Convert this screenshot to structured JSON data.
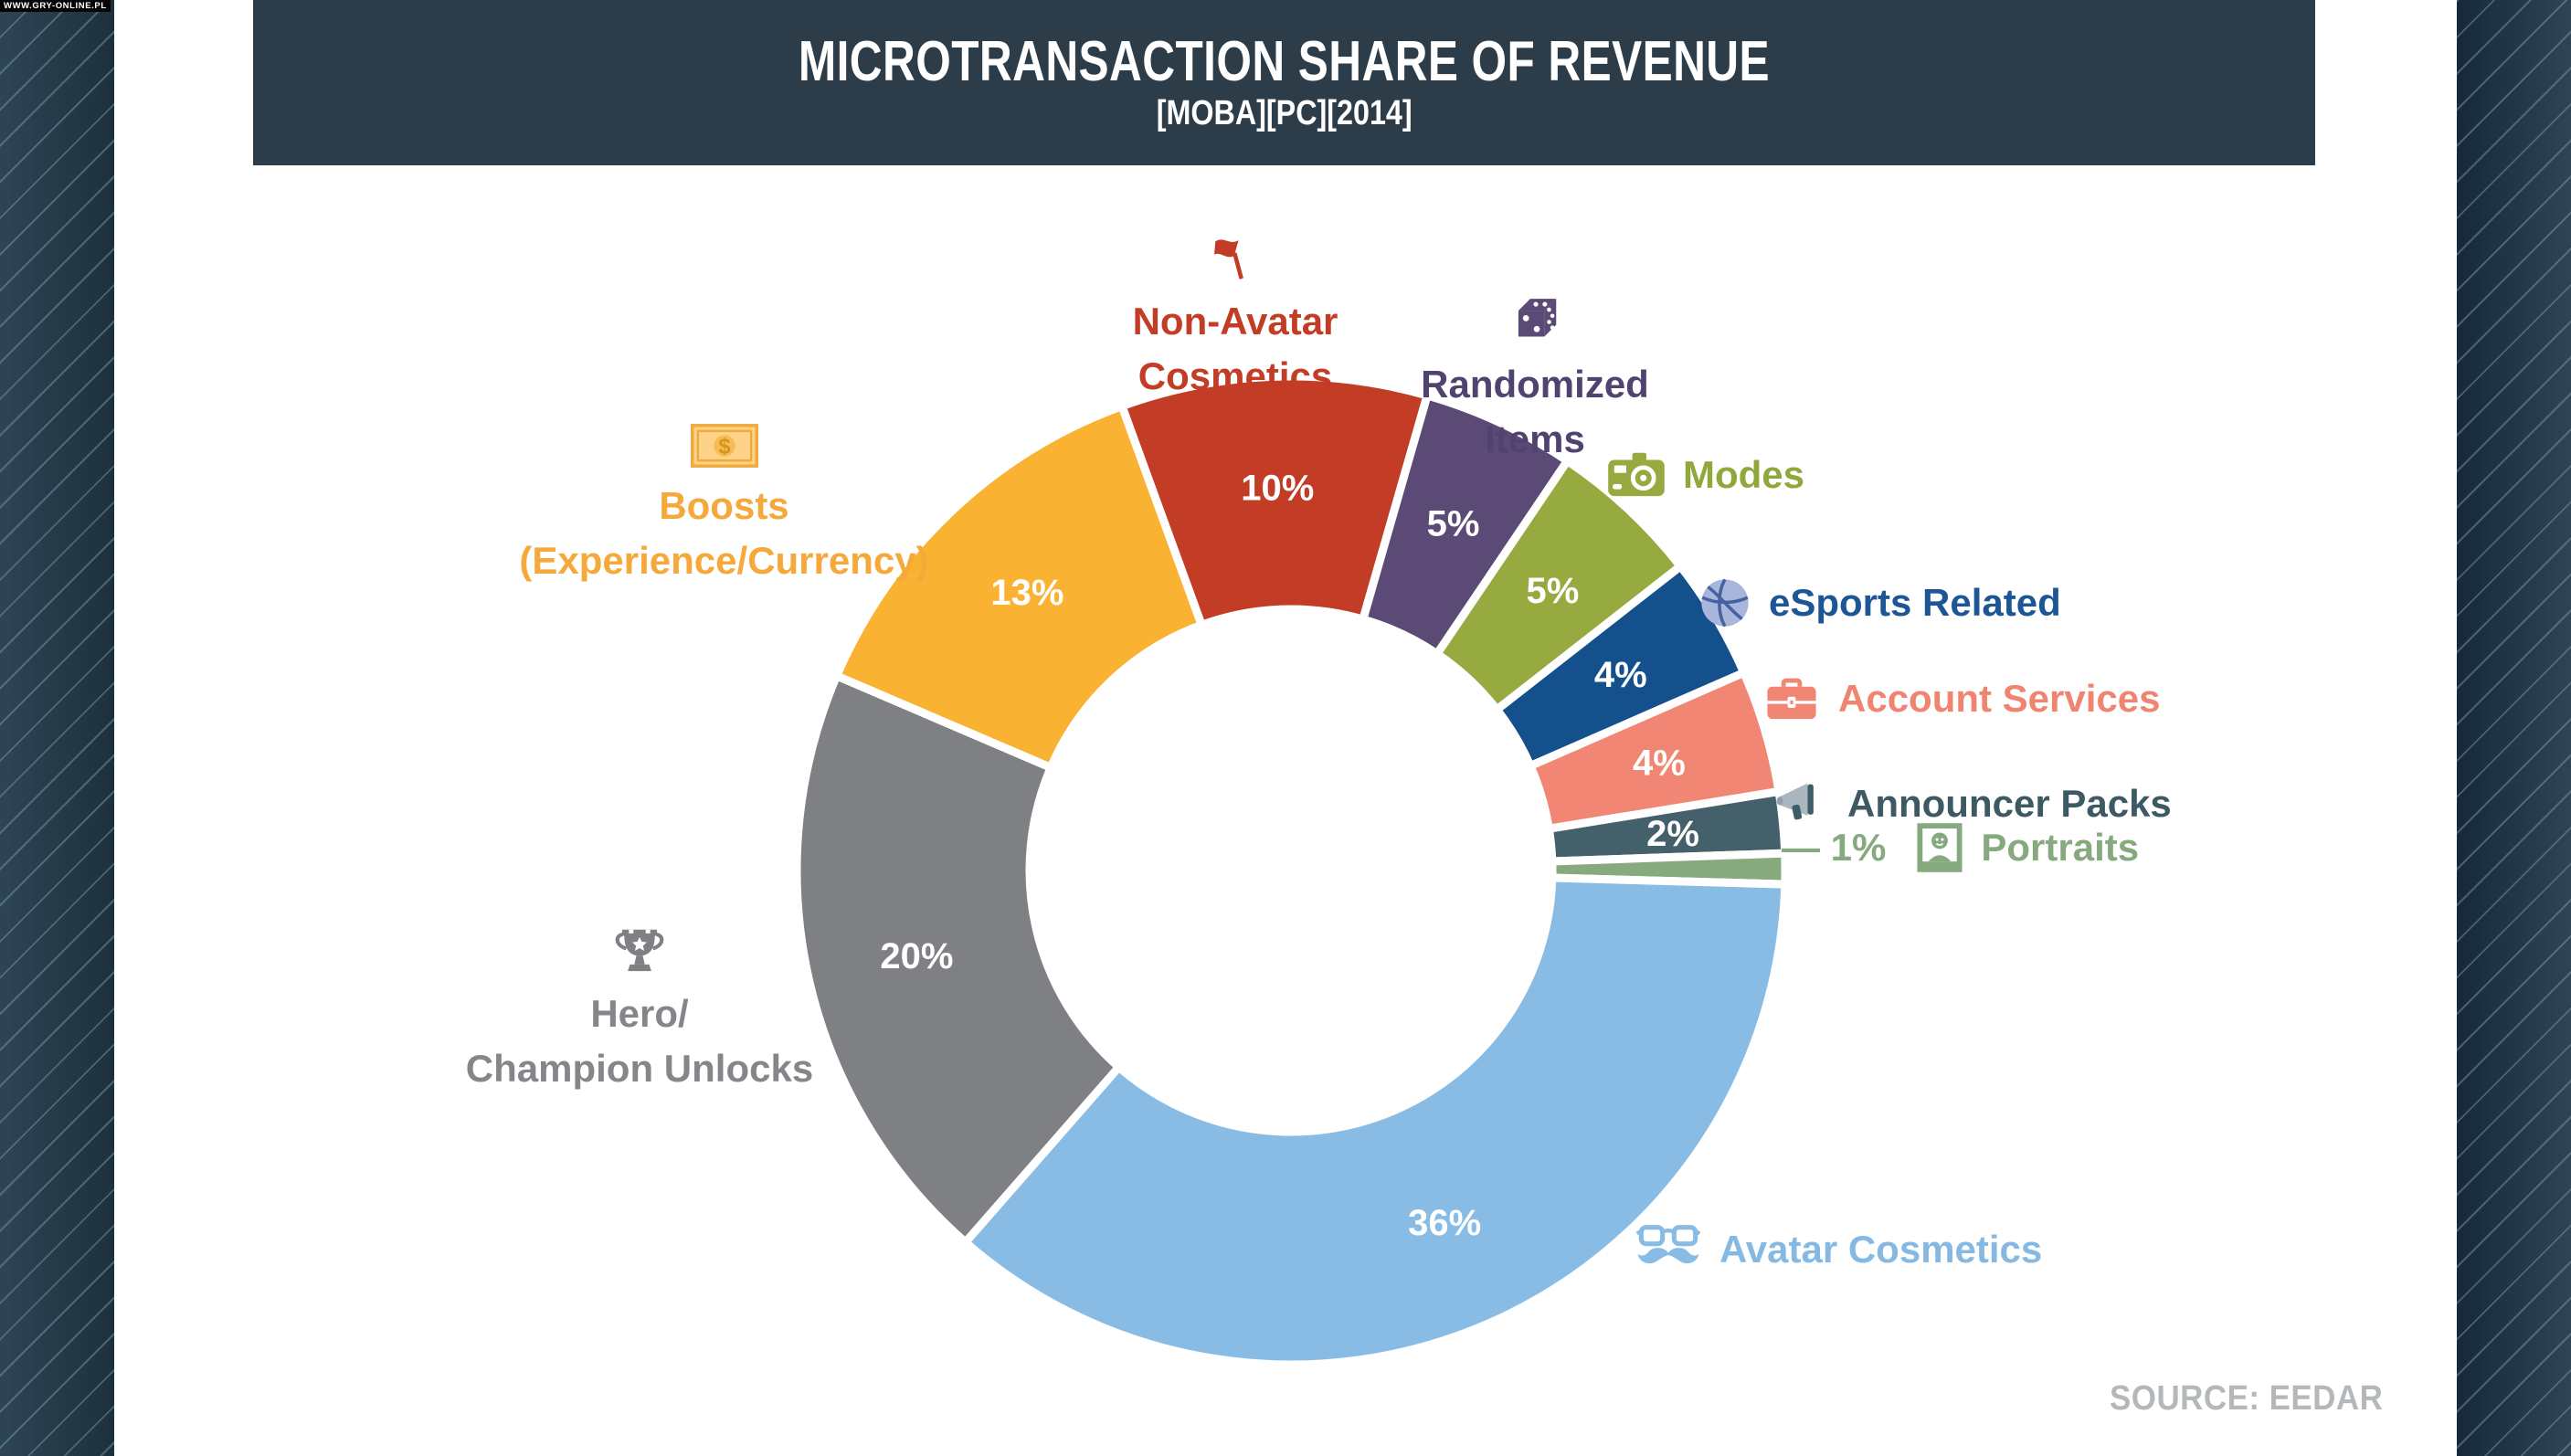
{
  "watermark": "WWW.GRY-ONLINE.PL",
  "header": {
    "title": "MICROTRANSACTION SHARE OF REVENUE",
    "subtitle": "[MOBA][PC][2014]"
  },
  "source": "SOURCE: EEDAR",
  "colors": {
    "header_bar": "#2c3d49",
    "panel_dark": "#1d303e",
    "panel_light": "#2e4553",
    "percent_text": "#ffffff",
    "source_text": "#b5b8ba",
    "slice_gap": "#ffffff"
  },
  "chart_data": {
    "type": "pie",
    "variant": "donut",
    "title": "MICROTRANSACTION SHARE OF REVENUE",
    "subtitle": "[MOBA][PC][2014]",
    "source": "SOURCE: EEDAR",
    "start_angle_deg": -20,
    "outer_radius": 541,
    "inner_radius": 286,
    "label_radius": 420,
    "gap_stroke_width": 9,
    "legend_position": "around",
    "segments": [
      {
        "label": "Non-Avatar Cosmetics",
        "label_lines": [
          "Non-Avatar",
          "Cosmetics"
        ],
        "value": 10,
        "pct_label": "10%",
        "color": "#c23c26",
        "label_color": "#c23c26",
        "icon": "flag-icon"
      },
      {
        "label": "Randomized Items",
        "label_lines": [
          "Randomized",
          "Items"
        ],
        "value": 5,
        "pct_label": "5%",
        "color": "#5b4a75",
        "label_color": "#514370",
        "icon": "dice-icon"
      },
      {
        "label": "Modes",
        "value": 5,
        "pct_label": "5%",
        "color": "#96aa40",
        "label_color": "#8fa83c",
        "icon": "camera-icon"
      },
      {
        "label": "eSports Related",
        "value": 4,
        "pct_label": "4%",
        "color": "#14508c",
        "label_color": "#1c5694",
        "icon": "basketball-icon"
      },
      {
        "label": "Account Services",
        "value": 4,
        "pct_label": "4%",
        "color": "#f08673",
        "label_color": "#ef8470",
        "icon": "briefcase-icon"
      },
      {
        "label": "Announcer Packs",
        "value": 2,
        "pct_label": "2%",
        "color": "#44606b",
        "label_color": "#3d5964",
        "icon": "megaphone-icon"
      },
      {
        "label": "Portraits",
        "value": 1,
        "pct_label": "1%",
        "outside_label": "— 1%",
        "label_outside": true,
        "color": "#86a97d",
        "label_color": "#86a97d",
        "icon": "portrait-icon"
      },
      {
        "label": "Avatar Cosmetics",
        "value": 36,
        "pct_label": "36%",
        "color": "#88bce5",
        "label_color": "#85b9e3",
        "icon": "glasses-mustache-icon"
      },
      {
        "label": "Hero/Champion Unlocks",
        "label_lines": [
          "Hero/",
          "Champion Unlocks"
        ],
        "value": 20,
        "pct_label": "20%",
        "color": "#7e8083",
        "label_color": "#85868a",
        "icon": "trophy-icon"
      },
      {
        "label": "Boosts (Experience/Currency)",
        "label_lines": [
          "Boosts",
          "(Experience/Currency)"
        ],
        "value": 13,
        "pct_label": "13%",
        "color": "#f9b232",
        "label_color": "#f5a93a",
        "icon": "money-icon"
      }
    ]
  }
}
